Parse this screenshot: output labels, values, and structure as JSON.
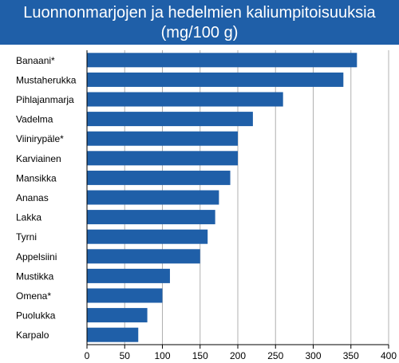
{
  "chart_data": {
    "type": "bar",
    "orientation": "horizontal",
    "title_lines": [
      "Luonnonmarjojen ja hedelmien kaliumpitoisuuksia",
      "(mg/100 g)"
    ],
    "categories": [
      "Banaani*",
      "Mustaherukka",
      "Pihlajanmarja",
      "Vadelma",
      "Viinirypäle*",
      "Karviainen",
      "Mansikka",
      "Ananas",
      "Lakka",
      "Tyrni",
      "Appelsiini",
      "Mustikka",
      "Omena*",
      "Puolukka",
      "Karpalo"
    ],
    "values": [
      358,
      340,
      260,
      220,
      200,
      200,
      190,
      175,
      170,
      160,
      150,
      110,
      100,
      80,
      68
    ],
    "xlim": [
      0,
      400
    ],
    "xticks": [
      0,
      50,
      100,
      150,
      200,
      250,
      300,
      350,
      400
    ],
    "xlabel": "",
    "ylabel": "",
    "grid": "vertical",
    "bar_color": "#1f5fa8",
    "title_band_color": "#1f5fa8",
    "grid_color": "#b0b0b0"
  }
}
